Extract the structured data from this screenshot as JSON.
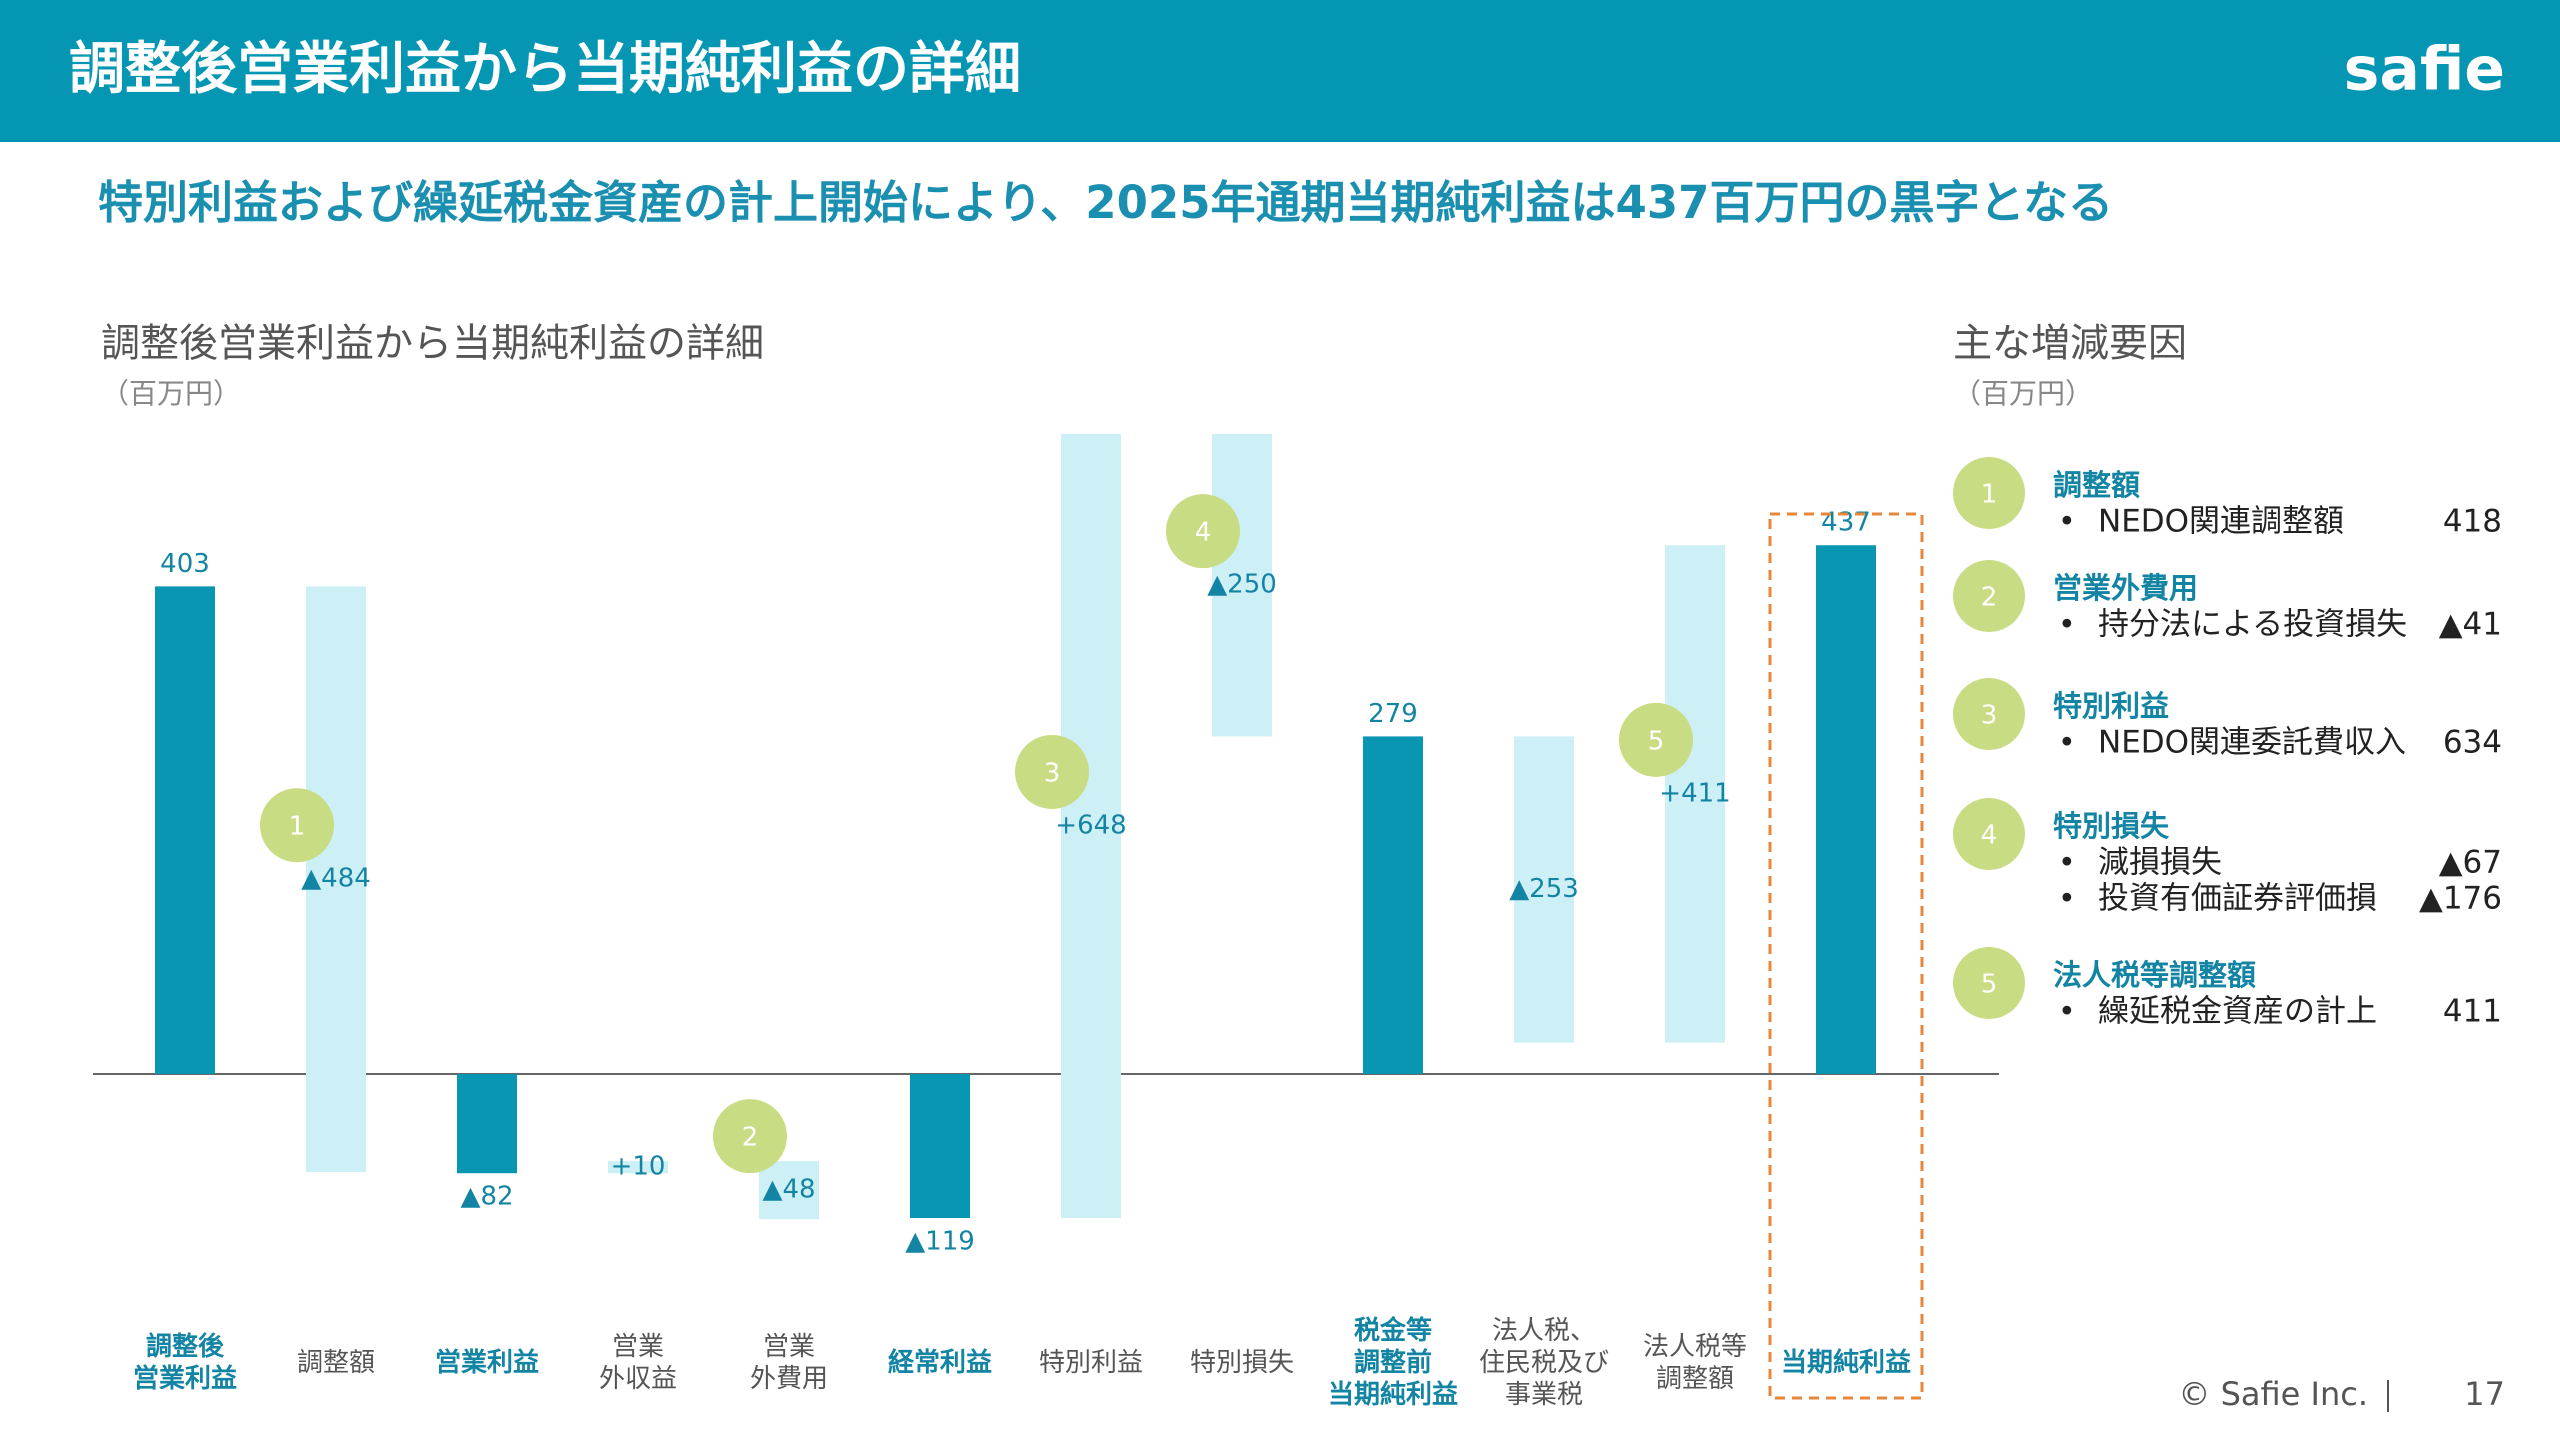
{
  "header": {
    "title": "調整後営業利益から当期純利益の詳細",
    "logo": "safie"
  },
  "headline": "特別利益および繰延税金資産の計上開始により、2025年通期当期純利益は437百万円の黒字となる",
  "chart_data": {
    "type": "waterfall",
    "title": "調整後営業利益から当期純利益の詳細",
    "unit": "（百万円）",
    "categories": [
      "調整後\n営業利益",
      "調整額",
      "営業利益",
      "営業\n外収益",
      "営業\n外費用",
      "経常利益",
      "特別利益",
      "特別損失",
      "税金等\n調整前\n当期純利益",
      "法人税、\n住民税及び\n事業税",
      "法人税等\n調整額",
      "当期純利益"
    ],
    "measure": [
      "absolute",
      "relative",
      "absolute",
      "relative",
      "relative",
      "absolute",
      "relative",
      "relative",
      "absolute",
      "relative",
      "relative",
      "absolute"
    ],
    "values": [
      403,
      -484,
      -82,
      10,
      -48,
      -119,
      648,
      -250,
      279,
      -253,
      411,
      437
    ],
    "value_labels": [
      "403",
      "▲484",
      "▲82",
      "+10",
      "▲48",
      "▲119",
      "+648",
      "▲250",
      "279",
      "▲253",
      "+411",
      "437"
    ],
    "markers": [
      null,
      "1",
      null,
      null,
      "2",
      null,
      "3",
      "4",
      null,
      null,
      "5",
      null
    ],
    "total_color": "#0896b2",
    "delta_color": "#cdeff6",
    "marker_color": "#c8dc83"
  },
  "factors": {
    "title": "主な増減要因",
    "unit": "（百万円）",
    "items": [
      {
        "number": "1",
        "title": "調整額",
        "lines": [
          {
            "text": "NEDO関連調整額",
            "value": "418"
          }
        ]
      },
      {
        "number": "2",
        "title": "営業外費用",
        "lines": [
          {
            "text": "持分法による投資損失",
            "value": "▲41"
          }
        ]
      },
      {
        "number": "3",
        "title": "特別利益",
        "lines": [
          {
            "text": "NEDO関連委託費収入",
            "value": "634"
          }
        ]
      },
      {
        "number": "4",
        "title": "特別損失",
        "lines": [
          {
            "text": "減損損失",
            "value": "▲67"
          },
          {
            "text": "投資有価証券評価損",
            "value": "▲176"
          }
        ]
      },
      {
        "number": "5",
        "title": "法人税等調整額",
        "lines": [
          {
            "text": "繰延税金資産の計上",
            "value": "411"
          }
        ]
      }
    ]
  },
  "footer": {
    "copyright": "© Safie Inc.",
    "page": "17"
  }
}
